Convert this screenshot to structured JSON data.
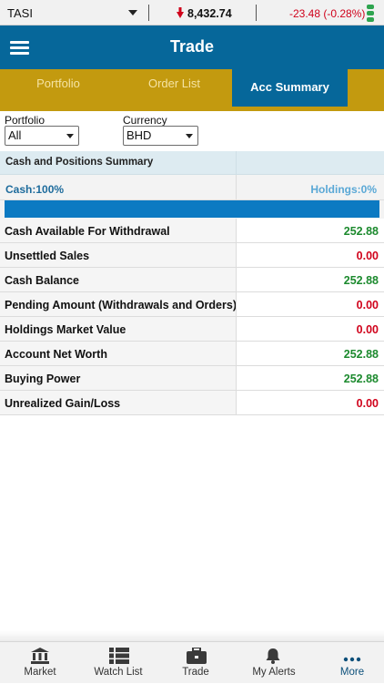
{
  "ticker": {
    "symbol": "TASI",
    "index_value": "8,432.74",
    "change": "-23.48 (-0.28%)",
    "direction": "down",
    "status_color": "#2ea44f"
  },
  "header": {
    "title": "Trade"
  },
  "tabs": [
    {
      "label": "Portfolio",
      "active": false
    },
    {
      "label": "Order List",
      "active": false
    },
    {
      "label": "Acc Summary",
      "active": true
    }
  ],
  "filters": {
    "portfolio_label": "Portfolio",
    "portfolio_value": "All",
    "currency_label": "Currency",
    "currency_value": "BHD"
  },
  "summary": {
    "title": "Cash and Positions Summary",
    "cash_label": "Cash:100%",
    "holdings_label": "Holdings:0%",
    "cash_fraction": 1.0
  },
  "rows": [
    {
      "label": "Cash Available For Withdrawal",
      "value": "252.88",
      "color": "green"
    },
    {
      "label": "Unsettled Sales",
      "value": "0.00",
      "color": "red"
    },
    {
      "label": "Cash Balance",
      "value": "252.88",
      "color": "green"
    },
    {
      "label": "Pending Amount (Withdrawals and Orders)",
      "value": "0.00",
      "color": "red"
    },
    {
      "label": "Holdings Market Value",
      "value": "0.00",
      "color": "red"
    },
    {
      "label": "Account Net Worth",
      "value": "252.88",
      "color": "green"
    },
    {
      "label": "Buying Power",
      "value": "252.88",
      "color": "green"
    },
    {
      "label": "Unrealized Gain/Loss",
      "value": "0.00",
      "color": "red"
    }
  ],
  "nav": [
    {
      "label": "Market",
      "icon": "bank-icon",
      "active": false
    },
    {
      "label": "Watch List",
      "icon": "list-icon",
      "active": false
    },
    {
      "label": "Trade",
      "icon": "briefcase-icon",
      "active": false
    },
    {
      "label": "My Alerts",
      "icon": "bell-icon",
      "active": false
    },
    {
      "label": "More",
      "icon": "more-dots-icon",
      "active": true
    }
  ],
  "colors": {
    "header_blue": "#06679a",
    "tab_gold": "#c39a0f",
    "positive": "#1c8a2e",
    "negative": "#d0021b"
  }
}
